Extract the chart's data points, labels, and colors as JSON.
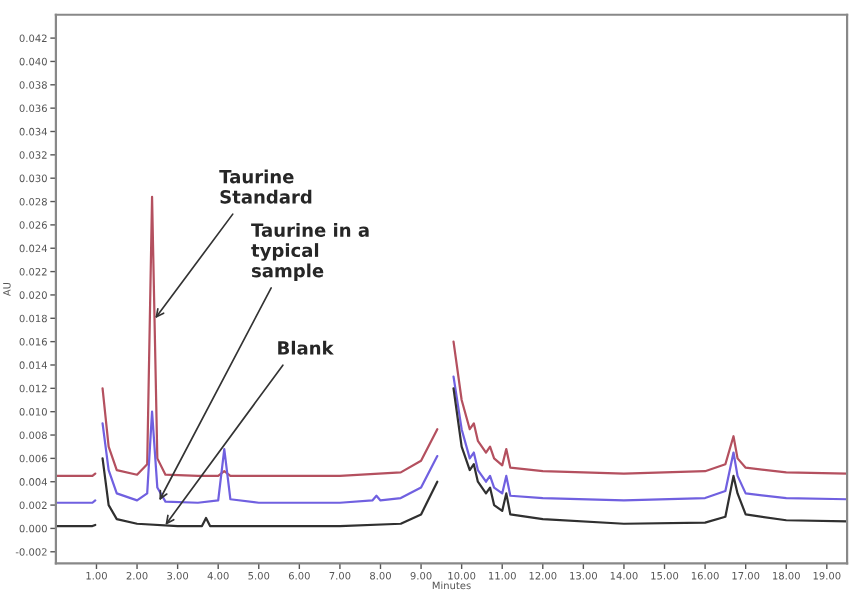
{
  "chart_data": {
    "type": "line",
    "xlabel": "Minutes",
    "ylabel": "AU",
    "xlim": [
      0,
      19.5
    ],
    "ylim": [
      -0.003,
      0.044
    ],
    "xticks": [
      {
        "value": 1,
        "label": "1.00"
      },
      {
        "value": 2,
        "label": "2.00"
      },
      {
        "value": 3,
        "label": "3.00"
      },
      {
        "value": 4,
        "label": "4.00"
      },
      {
        "value": 5,
        "label": "5.00"
      },
      {
        "value": 6,
        "label": "6.00"
      },
      {
        "value": 7,
        "label": "7.00"
      },
      {
        "value": 8,
        "label": "8.00"
      },
      {
        "value": 9,
        "label": "9.00"
      },
      {
        "value": 10,
        "label": "10.00"
      },
      {
        "value": 11,
        "label": "11.00"
      },
      {
        "value": 12,
        "label": "12.00"
      },
      {
        "value": 13,
        "label": "13.00"
      },
      {
        "value": 14,
        "label": "14.00"
      },
      {
        "value": 15,
        "label": "15.00"
      },
      {
        "value": 16,
        "label": "16.00"
      },
      {
        "value": 17,
        "label": "17.00"
      },
      {
        "value": 18,
        "label": "18.00"
      },
      {
        "value": 19,
        "label": "19.00"
      }
    ],
    "yticks": [
      {
        "value": -0.002,
        "label": "-0.002"
      },
      {
        "value": 0,
        "label": "0.000"
      },
      {
        "value": 0.002,
        "label": "0.002"
      },
      {
        "value": 0.004,
        "label": "0.004"
      },
      {
        "value": 0.006,
        "label": "0.006"
      },
      {
        "value": 0.008,
        "label": "0.008"
      },
      {
        "value": 0.01,
        "label": "0.010"
      },
      {
        "value": 0.012,
        "label": "0.012"
      },
      {
        "value": 0.014,
        "label": "0.014"
      },
      {
        "value": 0.016,
        "label": "0.016"
      },
      {
        "value": 0.018,
        "label": "0.018"
      },
      {
        "value": 0.02,
        "label": "0.020"
      },
      {
        "value": 0.022,
        "label": "0.022"
      },
      {
        "value": 0.024,
        "label": "0.024"
      },
      {
        "value": 0.026,
        "label": "0.026"
      },
      {
        "value": 0.028,
        "label": "0.028"
      },
      {
        "value": 0.03,
        "label": "0.030"
      },
      {
        "value": 0.032,
        "label": "0.032"
      },
      {
        "value": 0.034,
        "label": "0.034"
      },
      {
        "value": 0.036,
        "label": "0.036"
      },
      {
        "value": 0.038,
        "label": "0.038"
      },
      {
        "value": 0.04,
        "label": "0.040"
      },
      {
        "value": 0.042,
        "label": "0.042"
      }
    ],
    "grid": false,
    "legend": false,
    "marker": "none",
    "line_style": "solid",
    "series": [
      {
        "color": "#b4505f",
        "x": [
          0,
          0.9,
          0.97,
          1.0,
          1.08,
          1.15,
          1.3,
          1.5,
          2.0,
          2.25,
          2.37,
          2.5,
          2.7,
          3.5,
          4.0,
          4.15,
          4.3,
          5.0,
          7.0,
          8.5,
          9.0,
          9.4,
          9.55,
          9.7,
          9.8,
          10.0,
          10.2,
          10.3,
          10.4,
          10.6,
          10.7,
          10.8,
          11.0,
          11.1,
          11.2,
          12.0,
          14.0,
          16.0,
          16.5,
          16.7,
          16.8,
          17.0,
          18.0,
          19.5
        ],
        "values": [
          0.0045,
          0.0045,
          0.0047,
          null,
          null,
          0.012,
          0.007,
          0.005,
          0.0046,
          0.0055,
          0.0284,
          0.006,
          0.0046,
          0.0045,
          0.0045,
          0.0049,
          0.0045,
          0.0045,
          0.0045,
          0.0048,
          0.0058,
          0.0085,
          null,
          null,
          0.016,
          0.011,
          0.0085,
          0.009,
          0.0075,
          0.0065,
          0.007,
          0.006,
          0.0054,
          0.0068,
          0.0052,
          0.0049,
          0.0047,
          0.0049,
          0.0055,
          0.0079,
          0.006,
          0.0052,
          0.0048,
          0.0047
        ]
      },
      {
        "color": "#7060e0",
        "x": [
          0,
          0.9,
          0.97,
          1.0,
          1.08,
          1.15,
          1.3,
          1.5,
          2.0,
          2.25,
          2.37,
          2.5,
          2.7,
          3.5,
          4.0,
          4.15,
          4.3,
          5.0,
          7.0,
          7.8,
          7.9,
          8.0,
          8.5,
          9.0,
          9.4,
          9.55,
          9.7,
          9.8,
          10.0,
          10.2,
          10.3,
          10.4,
          10.6,
          10.7,
          10.8,
          11.0,
          11.1,
          11.2,
          12.0,
          14.0,
          16.0,
          16.5,
          16.7,
          16.8,
          17.0,
          18.0,
          19.5
        ],
        "values": [
          0.0022,
          0.0022,
          0.0024,
          null,
          null,
          0.009,
          0.005,
          0.003,
          0.0024,
          0.003,
          0.01,
          0.0035,
          0.0023,
          0.0022,
          0.0024,
          0.0068,
          0.0025,
          0.0022,
          0.0022,
          0.0024,
          0.0028,
          0.0024,
          0.0026,
          0.0035,
          0.0062,
          null,
          null,
          0.013,
          0.0085,
          0.006,
          0.0065,
          0.005,
          0.004,
          0.0045,
          0.0035,
          0.003,
          0.0045,
          0.0028,
          0.0026,
          0.0024,
          0.0026,
          0.0032,
          0.0065,
          0.0045,
          0.003,
          0.0026,
          0.0025
        ]
      },
      {
        "color": "#303030",
        "x": [
          0,
          0.9,
          0.97,
          1.0,
          1.08,
          1.15,
          1.3,
          1.5,
          2.0,
          3.0,
          3.6,
          3.7,
          3.8,
          5.0,
          7.0,
          8.5,
          9.0,
          9.4,
          9.55,
          9.7,
          9.8,
          10.0,
          10.2,
          10.3,
          10.4,
          10.6,
          10.7,
          10.8,
          11.0,
          11.1,
          11.2,
          12.0,
          14.0,
          16.0,
          16.5,
          16.7,
          16.8,
          17.0,
          18.0,
          19.5
        ],
        "values": [
          0.0002,
          0.0002,
          0.0003,
          null,
          null,
          0.006,
          0.002,
          0.0008,
          0.0004,
          0.0002,
          0.0002,
          0.0009,
          0.0002,
          0.0002,
          0.0002,
          0.0004,
          0.0012,
          0.004,
          null,
          null,
          0.012,
          0.007,
          0.005,
          0.0055,
          0.004,
          0.003,
          0.0035,
          0.002,
          0.0015,
          0.003,
          0.0012,
          0.0008,
          0.0004,
          0.0005,
          0.001,
          0.0045,
          0.003,
          0.0012,
          0.0007,
          0.0006
        ]
      }
    ],
    "annotations": [
      {
        "text": "Taurine\nStandard",
        "x": 2.45,
        "y": 0.018
      },
      {
        "text": "Taurine in a\ntypical\nsample",
        "x": 2.55,
        "y": 0.0024
      },
      {
        "text": "Blank",
        "x": 2.7,
        "y": 0.0003
      }
    ]
  }
}
